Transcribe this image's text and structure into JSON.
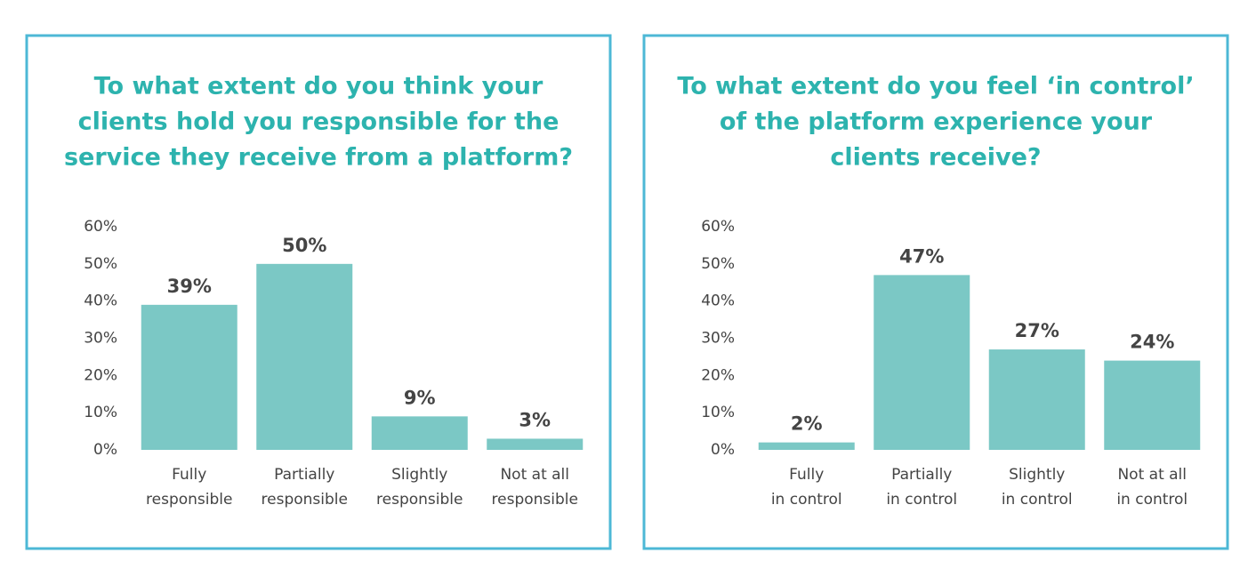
{
  "chart_data": [
    {
      "type": "bar",
      "title": [
        "To what extent do you think your",
        "clients hold you responsible for the",
        "service they receive from a platform?"
      ],
      "categories": [
        [
          "Fully",
          "responsible"
        ],
        [
          "Partially",
          "responsible"
        ],
        [
          "Slightly",
          "responsible"
        ],
        [
          "Not at all",
          "responsible"
        ]
      ],
      "values": [
        39,
        50,
        9,
        3
      ],
      "value_labels": [
        "39%",
        "50%",
        "9%",
        "3%"
      ],
      "color": "#7bc8c5",
      "ylim": [
        0,
        60
      ],
      "yticks": [
        {
          "value": 0,
          "label": "0%"
        },
        {
          "value": 10,
          "label": "10%"
        },
        {
          "value": 20,
          "label": "20%"
        },
        {
          "value": 30,
          "label": "30%"
        },
        {
          "value": 40,
          "label": "40%"
        },
        {
          "value": 50,
          "label": "50%"
        },
        {
          "value": 60,
          "label": "60%"
        }
      ]
    },
    {
      "type": "bar",
      "title": [
        "To what extent do you feel ‘in control’",
        "of the platform experience your",
        "clients receive?"
      ],
      "categories": [
        [
          "Fully",
          "in control"
        ],
        [
          "Partially",
          "in control"
        ],
        [
          "Slightly",
          "in control"
        ],
        [
          "Not at all",
          "in control"
        ]
      ],
      "values": [
        2,
        47,
        27,
        24
      ],
      "value_labels": [
        "2%",
        "47%",
        "27%",
        "24%"
      ],
      "color": "#7bc8c5",
      "ylim": [
        0,
        60
      ],
      "yticks": [
        {
          "value": 0,
          "label": "0%"
        },
        {
          "value": 10,
          "label": "10%"
        },
        {
          "value": 20,
          "label": "20%"
        },
        {
          "value": 30,
          "label": "30%"
        },
        {
          "value": 40,
          "label": "40%"
        },
        {
          "value": 50,
          "label": "50%"
        },
        {
          "value": 60,
          "label": "60%"
        }
      ]
    }
  ]
}
